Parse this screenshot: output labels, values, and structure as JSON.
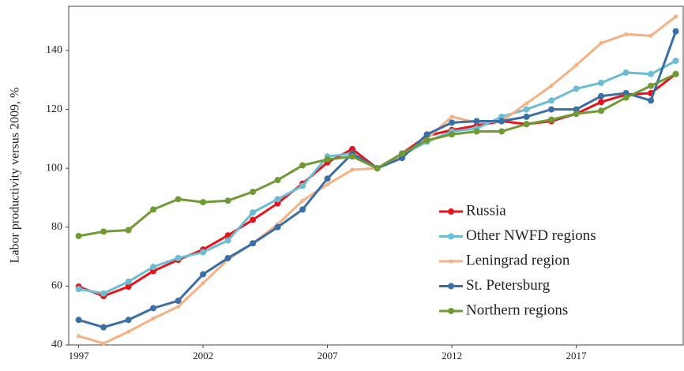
{
  "chart_data": {
    "type": "line",
    "y_label": "Labor productivity versus 2009, %",
    "x": [
      1997,
      1998,
      1999,
      2000,
      2001,
      2002,
      2003,
      2004,
      2005,
      2006,
      2007,
      2008,
      2009,
      2010,
      2011,
      2012,
      2013,
      2014,
      2015,
      2016,
      2017,
      2018,
      2019,
      2020,
      2021
    ],
    "xlim": [
      1996.6,
      2021.3
    ],
    "xticks": [
      1997,
      2002,
      2007,
      2012,
      2017
    ],
    "ylim": [
      40,
      155
    ],
    "yticks": [
      40,
      60,
      80,
      100,
      120,
      140
    ],
    "legend": "center-right",
    "series": [
      {
        "name": "Russia",
        "color": "#e8141c",
        "values": [
          59.8,
          56.6,
          59.8,
          65.1,
          68.9,
          72.4,
          77.2,
          82.5,
          88.1,
          94.8,
          102,
          106.5,
          100,
          105,
          111,
          113,
          114.5,
          116,
          115,
          116,
          118.5,
          122.5,
          125,
          125.5,
          132
        ]
      },
      {
        "name": "Other NWFD regions",
        "color": "#6bbdd3",
        "values": [
          59,
          57.5,
          61.5,
          66.5,
          69.5,
          71.5,
          75.5,
          85,
          89.5,
          94,
          104,
          105,
          100,
          104.5,
          109,
          112.5,
          113.5,
          117.5,
          120,
          123,
          127,
          129,
          132.5,
          132,
          136.5
        ]
      },
      {
        "name": "Leningrad region",
        "color": "#f4b183",
        "values": [
          43,
          40.5,
          44.5,
          49,
          53,
          61,
          69,
          74.5,
          81,
          89,
          94.5,
          99.5,
          100,
          104.5,
          110,
          117.5,
          115.5,
          116,
          122,
          128,
          135,
          142.5,
          145.5,
          145,
          151.5
        ]
      },
      {
        "name": "St. Petersburg",
        "color": "#3a6ea5",
        "values": [
          48.5,
          46,
          48.5,
          52.5,
          55,
          64,
          69.5,
          74.5,
          80,
          86,
          96.5,
          105,
          100,
          103.5,
          111.5,
          115.5,
          116,
          116,
          117.5,
          120,
          120,
          124.5,
          125.5,
          123,
          146.5
        ]
      },
      {
        "name": "Northern regions",
        "color": "#6f9a35",
        "values": [
          77,
          78.5,
          79,
          86,
          89.5,
          88.5,
          89,
          92,
          96,
          101,
          103,
          104,
          100,
          105,
          109.5,
          111.5,
          112.5,
          112.5,
          115,
          116.5,
          118.5,
          119.5,
          124,
          128,
          132
        ]
      }
    ]
  }
}
